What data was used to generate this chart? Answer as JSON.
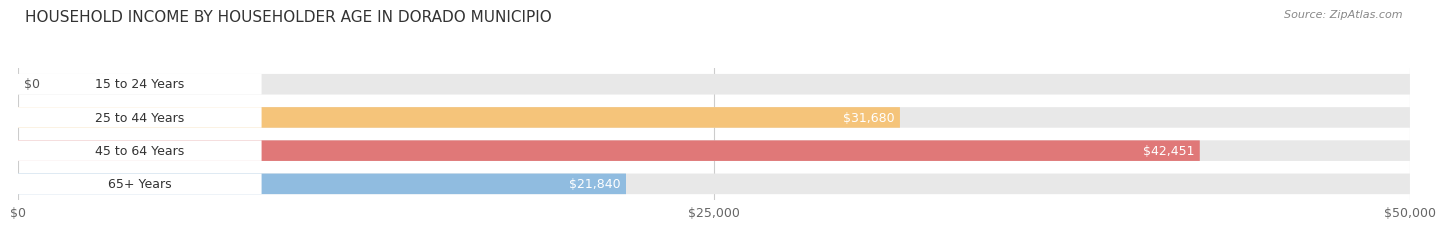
{
  "title": "HOUSEHOLD INCOME BY HOUSEHOLDER AGE IN DORADO MUNICIPIO",
  "source": "Source: ZipAtlas.com",
  "categories": [
    "15 to 24 Years",
    "25 to 44 Years",
    "45 to 64 Years",
    "65+ Years"
  ],
  "values": [
    0,
    31680,
    42451,
    21840
  ],
  "bar_colors": [
    "#f2a0b4",
    "#f5c47a",
    "#e07878",
    "#90bce0"
  ],
  "bar_bg_color": "#e8e8e8",
  "xlim": [
    0,
    50000
  ],
  "xticks": [
    0,
    25000,
    50000
  ],
  "xtick_labels": [
    "$0",
    "$25,000",
    "$50,000"
  ],
  "label_fontsize": 9,
  "title_fontsize": 11,
  "value_label_color_inside": "#ffffff",
  "value_label_color_outside": "#555555",
  "background_color": "#ffffff",
  "bar_height": 0.62,
  "fig_width": 14.06,
  "fig_height": 2.33
}
